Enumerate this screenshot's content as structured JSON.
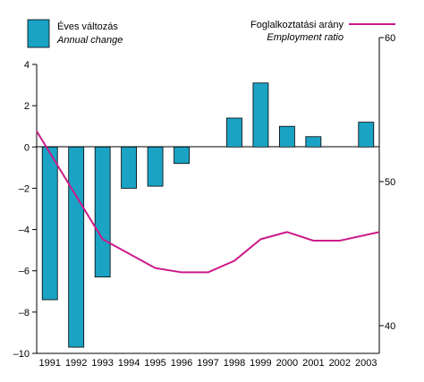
{
  "chart_data": {
    "type": "bar",
    "categories": [
      "1991",
      "1992",
      "1993",
      "1994",
      "1995",
      "1996",
      "1997",
      "1998",
      "1999",
      "2000",
      "2001",
      "2002",
      "2003"
    ],
    "series": [
      {
        "name": "Éves változás",
        "name_en": "Annual change",
        "type": "bar",
        "axis": "left",
        "color": "#1aa3c4",
        "values": [
          -7.4,
          -9.7,
          -6.3,
          -2.0,
          -1.9,
          -0.8,
          0.0,
          1.4,
          3.1,
          1.0,
          0.5,
          0.0,
          1.2
        ]
      },
      {
        "name": "Foglalkoztatási arány",
        "name_en": "Employment ratio",
        "type": "line",
        "axis": "right",
        "color": "#cc1a8a",
        "values": [
          53.5,
          49.0,
          46.0,
          45.0,
          44.0,
          43.7,
          43.7,
          44.5,
          46.0,
          46.5,
          45.9,
          45.9,
          46.5
        ]
      }
    ],
    "y_left": {
      "range": [
        -10,
        4
      ],
      "ticks": [
        4,
        2,
        0,
        -2,
        -4,
        -6,
        -8,
        -10
      ],
      "tick_labels": [
        "4",
        "2",
        "0",
        "–2",
        "–4",
        "–6",
        "–8",
        "–10"
      ]
    },
    "y_right": {
      "range": [
        40,
        60
      ],
      "ticks": [
        60,
        50,
        40
      ],
      "tick_labels": [
        "60",
        "50",
        "40"
      ]
    },
    "grid": false,
    "legend": [
      {
        "series": 0,
        "label": "Éves változás",
        "label_en": "Annual change",
        "placement": "top-left"
      },
      {
        "series": 1,
        "label": "Foglalkoztatási arány",
        "label_en": "Employment ratio",
        "placement": "top-right"
      }
    ]
  }
}
